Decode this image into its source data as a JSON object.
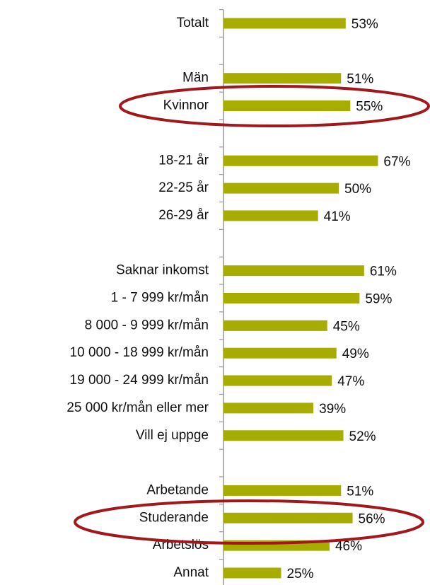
{
  "chart_data": {
    "type": "bar",
    "orientation": "horizontal",
    "color": "#a6ad00",
    "categories": [
      "Totalt",
      null,
      "Män",
      "Kvinnor",
      null,
      "18-21 år",
      "22-25 år",
      "26-29 år",
      null,
      "Saknar inkomst",
      "1 - 7 999 kr/mån",
      "8 000 - 9 999 kr/mån",
      "10 000 - 18 999 kr/mån",
      "19 000 - 24 999 kr/mån",
      "25 000 kr/mån eller mer",
      "Vill ej uppge",
      null,
      "Arbetande",
      "Studerande",
      "Arbetslös",
      "Annat"
    ],
    "values": [
      53,
      null,
      51,
      55,
      null,
      67,
      50,
      41,
      null,
      61,
      59,
      45,
      49,
      47,
      39,
      52,
      null,
      51,
      56,
      46,
      25
    ],
    "value_labels": [
      "53%",
      null,
      "51%",
      "55%",
      null,
      "67%",
      "50%",
      "41%",
      null,
      "61%",
      "59%",
      "45%",
      "49%",
      "47%",
      "39%",
      "52%",
      null,
      "51%",
      "56%",
      "46%",
      "25%"
    ]
  }
}
